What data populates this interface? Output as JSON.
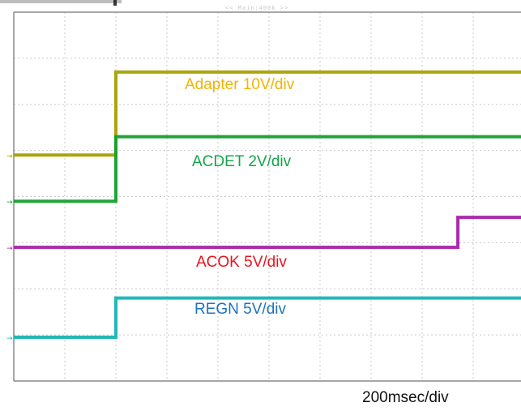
{
  "scope_header": "<< Main:400k >>",
  "colors": {
    "adapter": "#a8a000",
    "acdet": "#14a02c",
    "acok": "#a51fa6",
    "regn": "#17b4b4",
    "adapter_label": "#f0b400",
    "acdet_label": "#14a548",
    "acok_label": "#e6141e",
    "regn_label": "#1e73be",
    "grid": "#c9c9c9",
    "frame": "#8a8a8a"
  },
  "chart_data": {
    "type": "line",
    "title": "",
    "xlabel": "200msec/div",
    "ylabel": "",
    "x_unit": "div",
    "xlim": [
      0,
      10
    ],
    "ylim": [
      0,
      8
    ],
    "grid": true,
    "legend": "inline-labels",
    "series": [
      {
        "key": "adapter",
        "name": "Adapter 10V/div",
        "x": [
          0,
          2,
          2,
          10
        ],
        "y": [
          4.9,
          4.9,
          6.7,
          6.7
        ]
      },
      {
        "key": "acdet",
        "name": "ACDET 2V/div",
        "x": [
          0,
          2,
          2,
          10
        ],
        "y": [
          3.9,
          3.9,
          5.3,
          5.3
        ]
      },
      {
        "key": "acok",
        "name": "ACOK 5V/div",
        "x": [
          0,
          8.7,
          8.7,
          10
        ],
        "y": [
          2.9,
          2.9,
          3.55,
          3.55
        ]
      },
      {
        "key": "regn",
        "name": "REGN 5V/div",
        "x": [
          0,
          2,
          2,
          10
        ],
        "y": [
          0.95,
          0.95,
          1.8,
          1.8
        ]
      }
    ]
  }
}
